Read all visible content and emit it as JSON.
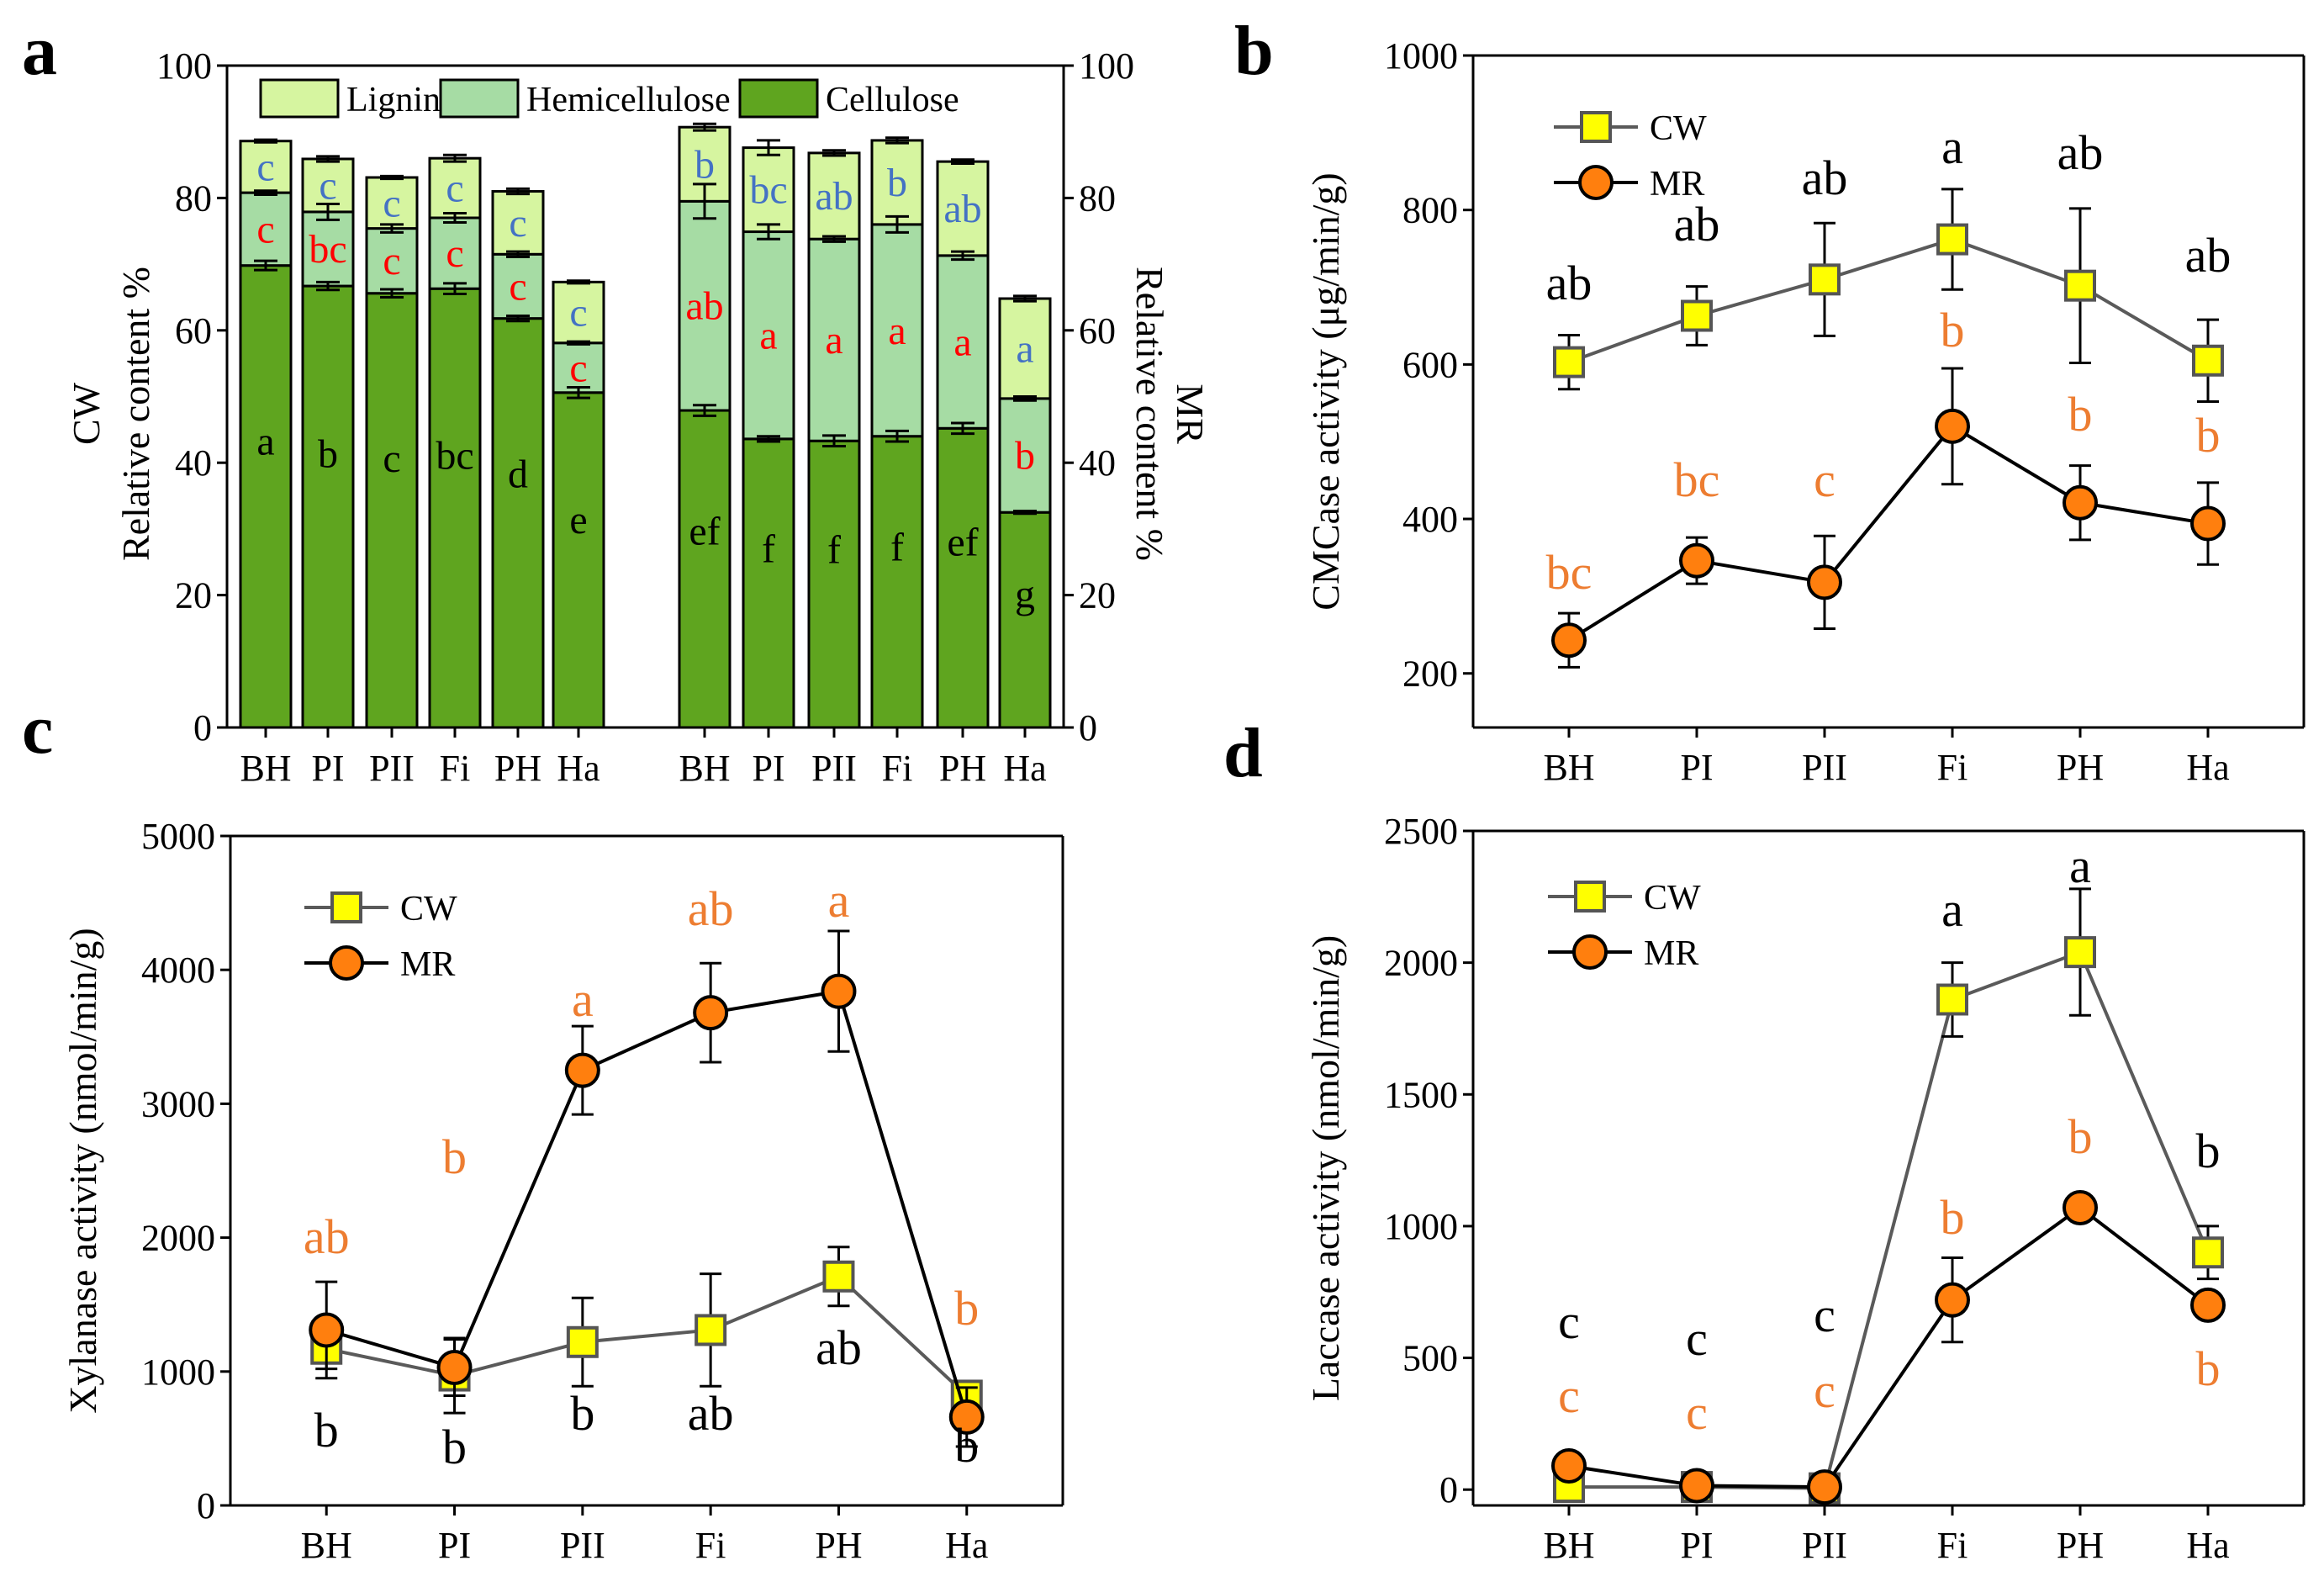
{
  "colors": {
    "cellulose": "#5fa51f",
    "hemicellulose": "#a6dca4",
    "lignin": "#d6f5a0",
    "cw_line": "#5a5a5a",
    "cw_marker": "#ffff00",
    "mr_marker": "#ff7f0e",
    "sig_red": "#ff0000",
    "sig_blue": "#4472c4",
    "sig_orange": "#ed7d31",
    "sig_black": "#000000"
  },
  "panel_labels": {
    "a": "a",
    "b": "b",
    "c": "c",
    "d": "d"
  },
  "chart_data": [
    {
      "panel": "a",
      "type": "bar",
      "stacked": true,
      "categories": [
        "BH",
        "PI",
        "PII",
        "Fi",
        "PH",
        "Ha"
      ],
      "ylabel_left": "Relative content %",
      "ylabel_left_group": "CW",
      "ylabel_right": "Relative content %",
      "ylabel_right_group": "MR",
      "ylim": [
        0,
        100
      ],
      "yticks": [
        "0",
        "20",
        "40",
        "60",
        "80",
        "100"
      ],
      "legend": [
        "Lignin",
        "Hemicellulose",
        "Cellulose"
      ],
      "groups": [
        {
          "name": "CW",
          "series": [
            {
              "name": "Cellulose",
              "values": [
                69.8,
                66.7,
                65.6,
                66.3,
                61.8,
                50.6
              ],
              "errors": [
                0.7,
                0.6,
                0.6,
                0.8,
                0.4,
                0.8
              ],
              "letters": [
                "a",
                "b",
                "c",
                "bc",
                "d",
                "e"
              ]
            },
            {
              "name": "Hemicellulose",
              "values": [
                11.0,
                11.2,
                9.8,
                10.7,
                9.7,
                7.5
              ],
              "errors": [
                0.3,
                1.2,
                0.6,
                0.7,
                0.4,
                0.2
              ],
              "letters": [
                "c",
                "bc",
                "c",
                "c",
                "c",
                "c"
              ]
            },
            {
              "name": "Lignin",
              "values": [
                7.8,
                8.0,
                7.7,
                9.0,
                9.5,
                9.2
              ],
              "errors": [
                0.2,
                0.4,
                0.2,
                0.5,
                0.4,
                0.2
              ],
              "letters": [
                "c",
                "c",
                "c",
                "c",
                "c",
                "c"
              ]
            }
          ]
        },
        {
          "name": "MR",
          "series": [
            {
              "name": "Cellulose",
              "values": [
                47.9,
                43.6,
                43.3,
                44.0,
                45.2,
                32.5
              ],
              "errors": [
                0.8,
                0.4,
                0.8,
                0.8,
                0.8,
                0.2
              ],
              "letters": [
                "ef",
                "f",
                "f",
                "f",
                "ef",
                "g"
              ]
            },
            {
              "name": "Hemicellulose",
              "values": [
                31.6,
                31.3,
                30.5,
                32.0,
                26.1,
                17.2
              ],
              "errors": [
                2.6,
                1.1,
                0.4,
                1.2,
                0.6,
                0.3
              ],
              "letters": [
                "ab",
                "a",
                "a",
                "a",
                "a",
                "b"
              ]
            },
            {
              "name": "Lignin",
              "values": [
                11.2,
                12.7,
                13.0,
                12.7,
                14.2,
                15.1
              ],
              "errors": [
                0.5,
                1.1,
                0.4,
                0.4,
                0.3,
                0.4
              ],
              "letters": [
                "b",
                "bc",
                "ab",
                "b",
                "ab",
                "a"
              ]
            }
          ]
        }
      ]
    },
    {
      "panel": "b",
      "type": "line",
      "categories": [
        "BH",
        "PI",
        "PII",
        "Fi",
        "PH",
        "Ha"
      ],
      "ylabel": "CMCase activity (μg/min/g)",
      "ylim": [
        130,
        1000
      ],
      "yticks": [
        200,
        400,
        600,
        800,
        1000
      ],
      "series": [
        {
          "name": "CW",
          "values": [
            603,
            663,
            710,
            762,
            702,
            605
          ],
          "errors": [
            35,
            38,
            73,
            65,
            100,
            53
          ],
          "letters": [
            "ab",
            "ab",
            "ab",
            "a",
            "ab",
            "ab"
          ]
        },
        {
          "name": "MR",
          "values": [
            243,
            346,
            318,
            520,
            421,
            394
          ],
          "errors": [
            35,
            30,
            60,
            75,
            48,
            53
          ],
          "letters": [
            "bc",
            "bc",
            "c",
            "b",
            "b",
            "b"
          ]
        }
      ]
    },
    {
      "panel": "c",
      "type": "line",
      "categories": [
        "BH",
        "PI",
        "PII",
        "Fi",
        "PH",
        "Ha"
      ],
      "ylabel": "Xylanase activity (nmol/min/g)",
      "ylim": [
        0,
        5000
      ],
      "yticks": [
        0,
        1000,
        2000,
        3000,
        4000,
        5000
      ],
      "series": [
        {
          "name": "CW",
          "values": [
            1170,
            970,
            1220,
            1310,
            1710,
            820
          ],
          "errors": [
            150,
            280,
            330,
            420,
            220,
            80
          ],
          "letters": [
            "b",
            "b",
            "b",
            "ab",
            "ab",
            "b"
          ]
        },
        {
          "name": "MR",
          "values": [
            1310,
            1030,
            3250,
            3680,
            3840,
            660
          ],
          "errors": [
            360,
            210,
            330,
            370,
            450,
            220
          ],
          "letters": [
            "ab",
            "b",
            "a",
            "ab",
            "a",
            "b"
          ]
        }
      ]
    },
    {
      "panel": "d",
      "type": "line",
      "categories": [
        "BH",
        "PI",
        "PII",
        "Fi",
        "PH",
        "Ha"
      ],
      "ylabel": "Laccase activity (nmol/min/g)",
      "ylim": [
        -60,
        2500
      ],
      "yticks": [
        0,
        500,
        1000,
        1500,
        2000,
        2500
      ],
      "series": [
        {
          "name": "CW",
          "values": [
            10,
            10,
            5,
            1860,
            2040,
            900
          ],
          "errors": [
            5,
            5,
            5,
            140,
            240,
            100
          ],
          "letters": [
            "c",
            "c",
            "c",
            "a",
            "a",
            "b"
          ]
        },
        {
          "name": "MR",
          "values": [
            90,
            15,
            10,
            720,
            1070,
            700
          ],
          "errors": [
            40,
            20,
            20,
            160,
            40,
            30
          ],
          "letters": [
            "c",
            "c",
            "c",
            "b",
            "b",
            "b"
          ]
        }
      ]
    }
  ]
}
